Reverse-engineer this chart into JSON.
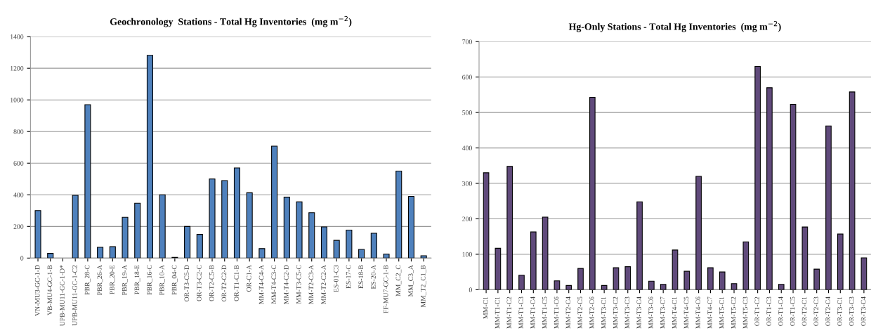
{
  "chart_data": [
    {
      "type": "bar",
      "title": "Geochronology  Stations - Total Hg Inventories  (mg m$^{−2}$)",
      "categories": [
        "VN-MU3-GC-1-D",
        "VB-MU4-GC-1-B",
        "UPB-MU11-GC-1-D*",
        "UPB-MU11-GC-1-C2",
        "PBR_28-C",
        "PBR_26-A",
        "PBR_20-E",
        "PBR_19-A",
        "PBR_18-E",
        "PBR_16-C",
        "PBR_10-A",
        "PBR_04-C",
        "OR-T3-C5-D",
        "OR-T3-C2-C",
        "OR-T2-C5-B",
        "OR-T2-C2-D",
        "OR-T1-C1-B",
        "OR-C1-A",
        "MM-T4-C4-A",
        "MM-T4-C3-C",
        "MM-T4-C2-D",
        "MM-T3-C5-C",
        "MM-T2-C3-A",
        "MM-T2-C2-A",
        "ES-01-C3",
        "ES-17-C",
        "ES-18-B",
        "ES-20-A",
        "FF-MU7-GC-1-B",
        "MM_C2_C",
        "MM_C3_A",
        "MM_T2_C1_B"
      ],
      "values": [
        300,
        30,
        null,
        397,
        970,
        68,
        72,
        258,
        347,
        1282,
        400,
        5,
        200,
        150,
        500,
        490,
        570,
        413,
        60,
        708,
        385,
        355,
        287,
        197,
        112,
        177,
        55,
        157,
        25,
        550,
        390,
        15
      ],
      "color": "#4f81bd",
      "ylim": [
        0,
        1400
      ],
      "yticks": [
        0,
        200,
        400,
        600,
        800,
        1000,
        1200,
        1400
      ],
      "grid": "y"
    },
    {
      "type": "bar",
      "title": "Hg-Only Stations - Total Hg Inventories  (mg m$^{−2}$)",
      "categories": [
        "MM-C1",
        "MM-T1-C1",
        "MM-T1-C2",
        "MM-T1-C3",
        "MM-T1-C4",
        "MM-T1-C5",
        "MM-T1-C6",
        "MM-T2-C4",
        "MM-T2-C5",
        "MM-T2-C6",
        "MM-T3-C1",
        "MM-T3-C2",
        "MM-T3-C3",
        "MM-T3-C4",
        "MM-T3-C6",
        "MM-T3-C7",
        "MM-T4-C1",
        "MM-T4-C5",
        "MM-T4-C6",
        "MM-T4-C7",
        "MM-T5-C1",
        "MM-T5-C2",
        "MM-T5-C3",
        "OR-T1-C2",
        "OR-T1-C3",
        "OR-T1-C4",
        "OR-T1-C5",
        "OR-T2-C1",
        "OR-T2-C3",
        "OR-T2-C4",
        "OR-T3-C1",
        "OR-T3-C3",
        "OR-T3-C4"
      ],
      "values": [
        330,
        117,
        348,
        41,
        163,
        205,
        25,
        12,
        60,
        543,
        12,
        62,
        65,
        248,
        24,
        15,
        112,
        52,
        320,
        62,
        50,
        17,
        135,
        630,
        570,
        15,
        523,
        177,
        58,
        462,
        157,
        558,
        90
      ],
      "color": "#604a7b",
      "ylim": [
        0,
        700
      ],
      "yticks": [
        0,
        100,
        200,
        300,
        400,
        500,
        600,
        700
      ],
      "grid": "y"
    }
  ]
}
